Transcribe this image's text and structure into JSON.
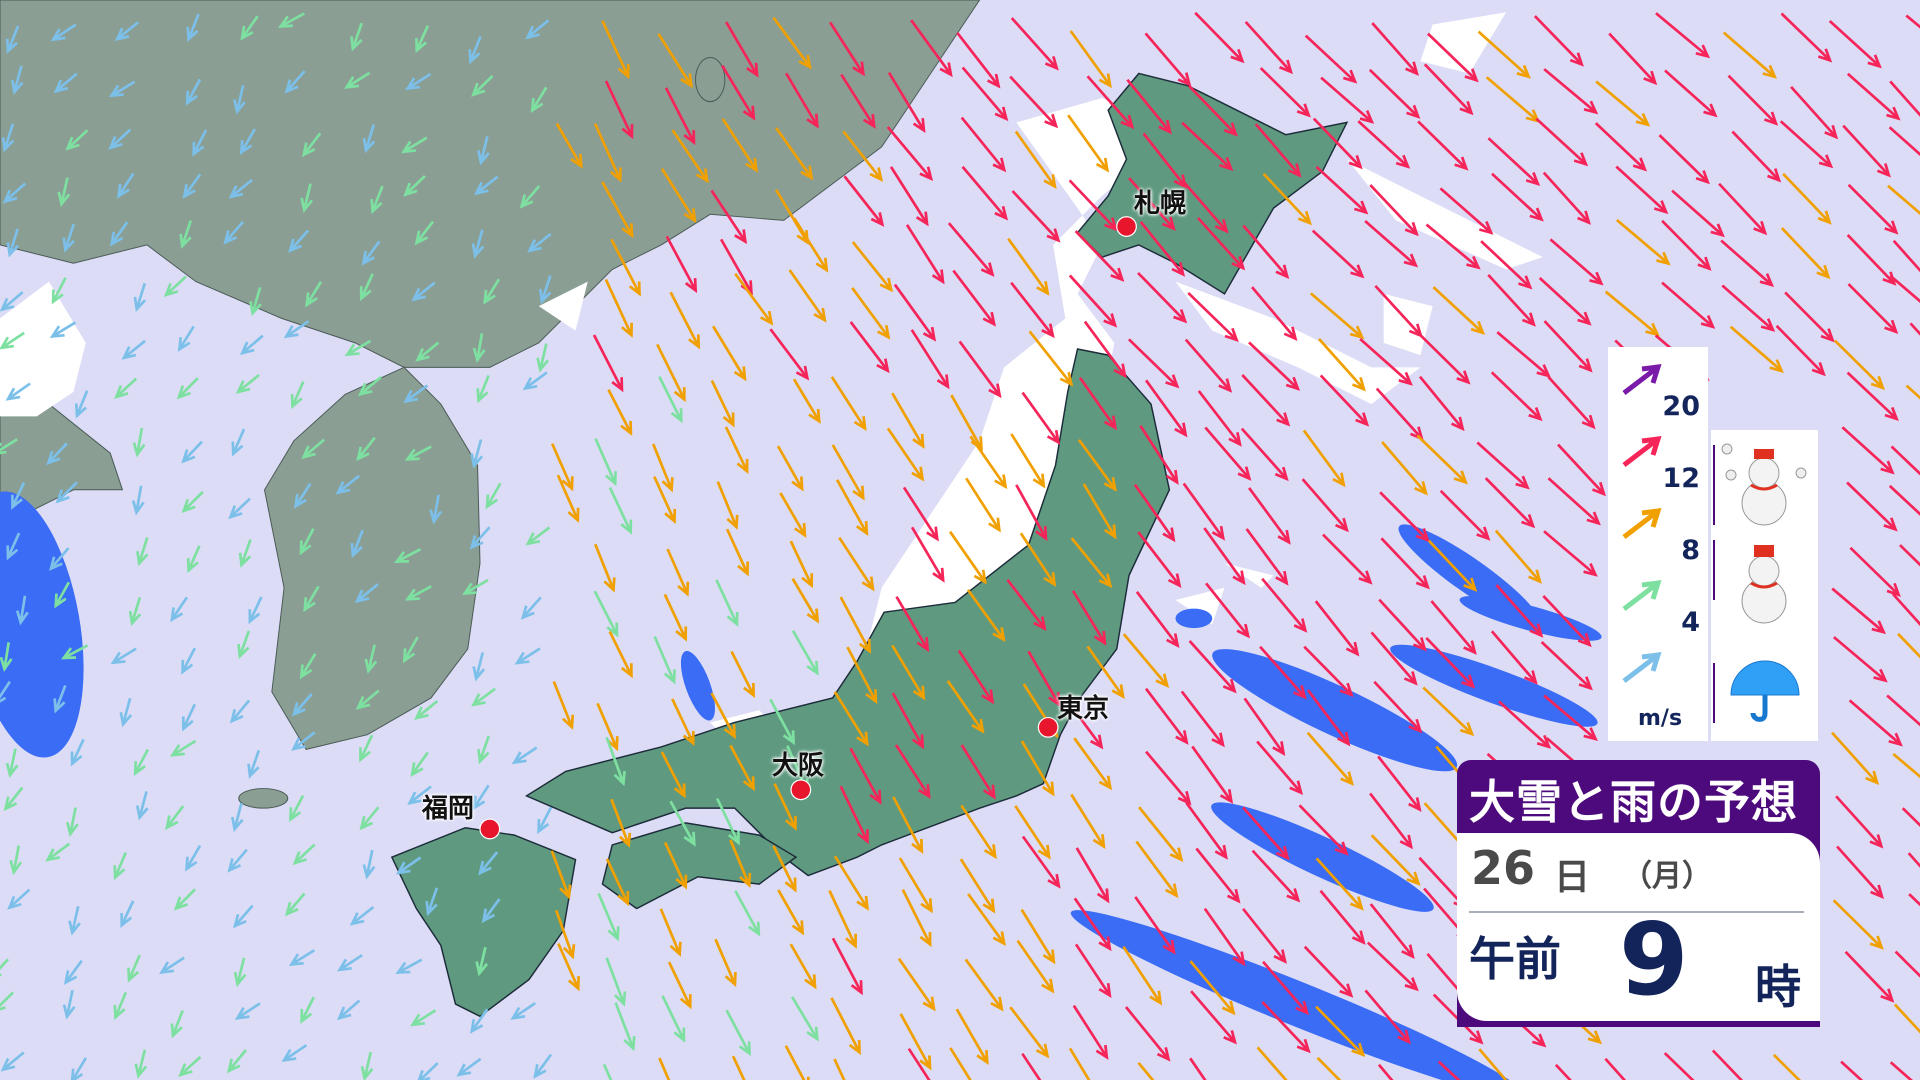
{
  "title": "大雪と雨の予想",
  "date": {
    "day": "26",
    "day_unit": "日",
    "weekday": "（月）"
  },
  "time": {
    "period": "午前",
    "hour": "9",
    "hour_unit": "時"
  },
  "cities": [
    {
      "name": "札幌"
    },
    {
      "name": "東京"
    },
    {
      "name": "大阪"
    },
    {
      "name": "福岡"
    }
  ],
  "wind_legend": {
    "unit": "m/s",
    "levels": [
      {
        "label": "20",
        "color": "#7a1aa8"
      },
      {
        "label": "12",
        "color": "#f5255a"
      },
      {
        "label": "8",
        "color": "#f0a000"
      },
      {
        "label": "4",
        "color": "#7ee0a0"
      },
      {
        "label": "",
        "color": "#7cc0ea"
      }
    ]
  },
  "precip_legend": [
    {
      "icon": "heavy-snow-icon"
    },
    {
      "icon": "snow-icon"
    },
    {
      "icon": "rain-umbrella-icon"
    }
  ],
  "colors": {
    "sea": "#dcdcf7",
    "continent": "#8a9e94",
    "japan": "#5f9a80",
    "snow": "#ffffff",
    "rain": "#3a6cf5",
    "city_dot": "#e8162c",
    "title_bg": "#4d0a7d"
  }
}
